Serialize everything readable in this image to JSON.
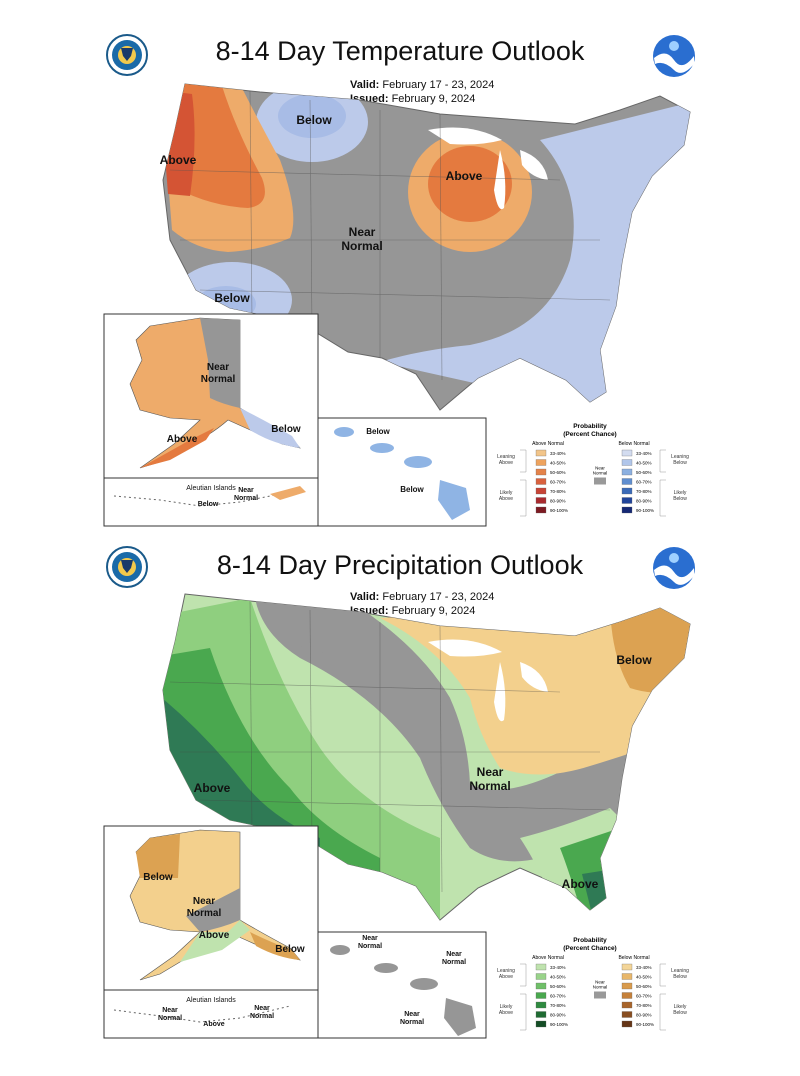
{
  "temperature": {
    "title": "8-14 Day Temperature Outlook",
    "valid_label": "Valid:",
    "valid_value": "February 17 - 23, 2024",
    "issued_label": "Issued:",
    "issued_value": "February 9, 2024",
    "regions": {
      "above_west": "Above",
      "above_great_lakes": "Above",
      "below_north": "Below",
      "below_southwest": "Below",
      "near_normal_center": [
        "Near",
        "Normal"
      ]
    },
    "alaska": {
      "near": [
        "Near",
        "Normal"
      ],
      "above": "Above",
      "below": "Below"
    },
    "aleutian": {
      "title": "Aleutian Islands",
      "near": "Near",
      "normal": "Normal",
      "below": "Below"
    },
    "hawaii": {
      "below_1": "Below",
      "below_2": "Below"
    },
    "legend": {
      "title": [
        "Probability",
        "(Percent Chance)"
      ],
      "above_header": "Above Normal",
      "below_header": "Below Normal",
      "leaning_above": [
        "Leaning",
        "Above"
      ],
      "likely_above": [
        "Likely",
        "Above"
      ],
      "leaning_below": [
        "Leaning",
        "Below"
      ],
      "likely_below": [
        "Likely",
        "Below"
      ],
      "near_normal": [
        "Near",
        "Normal"
      ],
      "bins": [
        "33-40%",
        "40-50%",
        "50-60%",
        "60-70%",
        "70-80%",
        "80-90%",
        "90-100%"
      ],
      "above_colors": [
        "#f2c58a",
        "#eea35e",
        "#e4834a",
        "#d9613e",
        "#c74436",
        "#a92a2e",
        "#7d1a22"
      ],
      "below_colors": [
        "#d3dcf0",
        "#b1c6ea",
        "#8cb0e0",
        "#5f8ed0",
        "#3a6ab8",
        "#20449a",
        "#152874"
      ],
      "near_color": "#999999"
    },
    "colors": {
      "near": "#969696",
      "below": "#bccaea",
      "below_strong": "#9fb6e2",
      "above": "#eeab6a",
      "above_strong": "#e47a3f",
      "above_max": "#d45434"
    }
  },
  "precipitation": {
    "title": "8-14 Day Precipitation Outlook",
    "valid_label": "Valid:",
    "valid_value": "February 17 - 23, 2024",
    "issued_label": "Issued:",
    "issued_value": "February 9, 2024",
    "regions": {
      "above_california": "Above",
      "above_florida": "Above",
      "below_northeast": "Below",
      "near_normal_center": [
        "Near",
        "Normal"
      ]
    },
    "alaska": {
      "below": "Below",
      "near": [
        "Near",
        "Normal"
      ],
      "above": "Above",
      "below_se": "Below"
    },
    "aleutian": {
      "title": "Aleutian Islands",
      "near": "Near",
      "normal": "Normal",
      "above": "Above",
      "near2": "Near",
      "normal2": "Normal"
    },
    "hawaii": {
      "near_1": [
        "Near",
        "Normal"
      ],
      "near_2": [
        "Near",
        "Normal"
      ],
      "near_3": [
        "Near",
        "Normal"
      ]
    },
    "legend": {
      "title": [
        "Probability",
        "(Percent Chance)"
      ],
      "above_header": "Above Normal",
      "below_header": "Below Normal",
      "leaning_above": [
        "Leaning",
        "Above"
      ],
      "likely_above": [
        "Likely",
        "Above"
      ],
      "leaning_below": [
        "Leaning",
        "Below"
      ],
      "likely_below": [
        "Likely",
        "Below"
      ],
      "near_normal": [
        "Near",
        "Normal"
      ],
      "bins": [
        "33-40%",
        "40-50%",
        "50-60%",
        "60-70%",
        "70-80%",
        "80-90%",
        "90-100%"
      ],
      "above_colors": [
        "#bfe3ae",
        "#99d38a",
        "#6fbf68",
        "#49a84e",
        "#2f8a40",
        "#1f6b32",
        "#144d25"
      ],
      "below_colors": [
        "#f3d598",
        "#e8b76b",
        "#d99b4c",
        "#c5803a",
        "#a8652b",
        "#884d20",
        "#653516"
      ],
      "near_color": "#999999"
    },
    "colors": {
      "near": "#969696",
      "above_light": "#bfe3ae",
      "above_mid": "#8fcf7f",
      "above_strong": "#4aa84f",
      "above_max": "#2f7a55",
      "below_light": "#f3d08d",
      "below_strong": "#dca252"
    }
  }
}
